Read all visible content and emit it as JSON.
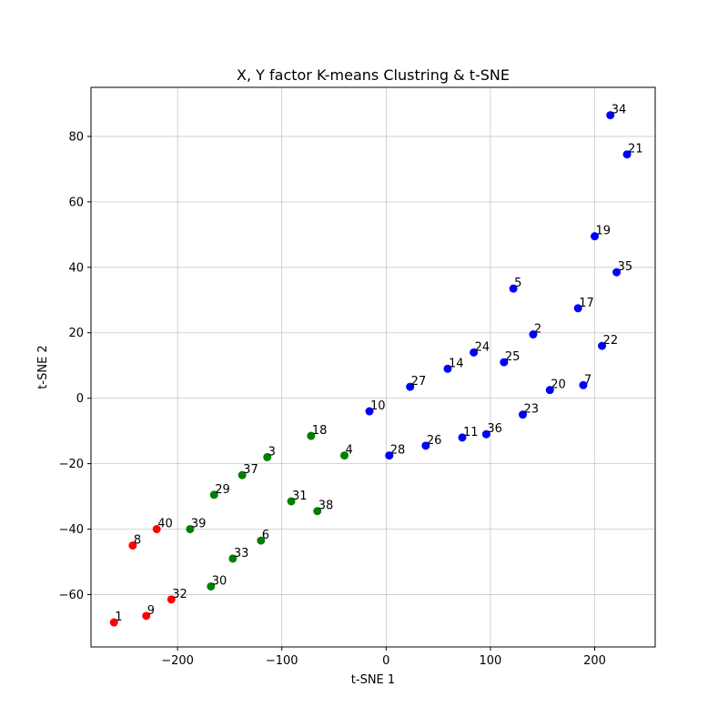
{
  "chart_data": {
    "type": "scatter",
    "title": "X, Y factor K-means Clustring & t-SNE",
    "xlabel": "t-SNE 1",
    "ylabel": "t-SNE 2",
    "xlim": [
      -283,
      258
    ],
    "ylim": [
      -76,
      95
    ],
    "xticks": [
      -200,
      -100,
      0,
      100,
      200
    ],
    "xtick_labels": [
      "−200",
      "−100",
      "0",
      "100",
      "200"
    ],
    "yticks": [
      -60,
      -40,
      -20,
      0,
      20,
      40,
      60,
      80
    ],
    "ytick_labels": [
      "−60",
      "−40",
      "−20",
      "0",
      "20",
      "40",
      "60",
      "80"
    ],
    "grid": true,
    "series": [
      {
        "color": "#0000ff",
        "points": [
          {
            "label": "34",
            "x": 215,
            "y": 86.5
          },
          {
            "label": "21",
            "x": 231,
            "y": 74.5
          },
          {
            "label": "19",
            "x": 200,
            "y": 49.5
          },
          {
            "label": "35",
            "x": 221,
            "y": 38.5
          },
          {
            "label": "5",
            "x": 122,
            "y": 33.5
          },
          {
            "label": "17",
            "x": 184,
            "y": 27.5
          },
          {
            "label": "2",
            "x": 141,
            "y": 19.5
          },
          {
            "label": "22",
            "x": 207,
            "y": 16.0
          },
          {
            "label": "24",
            "x": 84,
            "y": 14.0
          },
          {
            "label": "25",
            "x": 113,
            "y": 11.0
          },
          {
            "label": "14",
            "x": 59,
            "y": 9.0
          },
          {
            "label": "7",
            "x": 189,
            "y": 4.0
          },
          {
            "label": "27",
            "x": 23,
            "y": 3.5
          },
          {
            "label": "20",
            "x": 157,
            "y": 2.5
          },
          {
            "label": "10",
            "x": -16,
            "y": -4.0
          },
          {
            "label": "23",
            "x": 131,
            "y": -5.0
          },
          {
            "label": "36",
            "x": 96,
            "y": -11.0
          },
          {
            "label": "11",
            "x": 73,
            "y": -12.0
          },
          {
            "label": "26",
            "x": 38,
            "y": -14.5
          },
          {
            "label": "28",
            "x": 3,
            "y": -17.5
          }
        ]
      },
      {
        "color": "#008000",
        "points": [
          {
            "label": "18",
            "x": -72,
            "y": -11.5
          },
          {
            "label": "4",
            "x": -40,
            "y": -17.5
          },
          {
            "label": "3",
            "x": -114,
            "y": -18.0
          },
          {
            "label": "37",
            "x": -138,
            "y": -23.5
          },
          {
            "label": "29",
            "x": -165,
            "y": -29.5
          },
          {
            "label": "31",
            "x": -91,
            "y": -31.5
          },
          {
            "label": "38",
            "x": -66,
            "y": -34.5
          },
          {
            "label": "39",
            "x": -188,
            "y": -40.0
          },
          {
            "label": "6",
            "x": -120,
            "y": -43.5
          },
          {
            "label": "33",
            "x": -147,
            "y": -49.0
          },
          {
            "label": "30",
            "x": -168,
            "y": -57.5
          }
        ]
      },
      {
        "color": "#ff0000",
        "points": [
          {
            "label": "40",
            "x": -220,
            "y": -40.0
          },
          {
            "label": "8",
            "x": -243,
            "y": -45.0
          },
          {
            "label": "32",
            "x": -206,
            "y": -61.5
          },
          {
            "label": "9",
            "x": -230,
            "y": -66.5
          },
          {
            "label": "1",
            "x": -261,
            "y": -68.5
          }
        ]
      }
    ]
  }
}
